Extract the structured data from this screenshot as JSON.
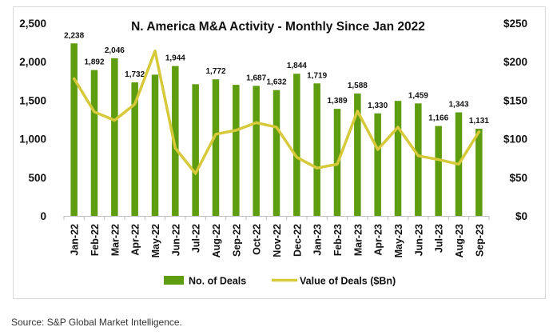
{
  "chart_data": {
    "type": "bar",
    "title": "N. America M&A Activity - Monthly Since Jan 2022",
    "categories": [
      "Jan-22",
      "Feb-22",
      "Mar-22",
      "Apr-22",
      "May-22",
      "Jun-22",
      "Jul-22",
      "Aug-22",
      "Sep-22",
      "Oct-22",
      "Nov-22",
      "Dec-22",
      "Jan-23",
      "Feb-23",
      "Mar-23",
      "Apr-23",
      "May-23",
      "Jun-23",
      "Jul-23",
      "Aug-23",
      "Sep-23"
    ],
    "series": [
      {
        "name": "No. of Deals",
        "type": "bar",
        "axis": "left",
        "color": "#5e9c10",
        "values": [
          2238,
          1892,
          2046,
          1732,
          1832,
          1944,
          1708,
          1772,
          1700,
          1687,
          1632,
          1844,
          1719,
          1389,
          1588,
          1330,
          1492,
          1459,
          1166,
          1343,
          1131
        ],
        "labels": [
          "2,238",
          "1,892",
          "2,046",
          "1,732",
          "",
          "1,944",
          "",
          "1,772",
          "",
          "1,687",
          "1,632",
          "1,844",
          "1,719",
          "1,389",
          "1,588",
          "1,330",
          "",
          "1,459",
          "1,166",
          "1,343",
          "1,131"
        ]
      },
      {
        "name": "Value of Deals ($Bn)",
        "type": "line",
        "axis": "right",
        "color": "#d6c93a",
        "values": [
          178,
          135,
          124,
          145,
          214,
          88,
          55,
          106,
          111,
          121,
          115,
          76,
          62,
          67,
          136,
          86,
          115,
          78,
          73,
          67,
          109
        ]
      }
    ],
    "left_axis": {
      "ylim": [
        0,
        2500
      ],
      "ticks": [
        "0",
        "500",
        "1,000",
        "1,500",
        "2,000",
        "2,500"
      ],
      "tick_values": [
        0,
        500,
        1000,
        1500,
        2000,
        2500
      ]
    },
    "right_axis": {
      "ylim": [
        0,
        250
      ],
      "ticks": [
        "$0",
        "$50",
        "$100",
        "$150",
        "$200",
        "$250"
      ],
      "tick_values": [
        0,
        50,
        100,
        150,
        200,
        250
      ]
    },
    "xlabel": "",
    "ylabel": "",
    "grid": false,
    "legend": {
      "position": "bottom",
      "entries": [
        "No. of Deals",
        "Value of Deals ($Bn)"
      ]
    }
  },
  "source": "Source:  S&P Global Market Intelligence."
}
